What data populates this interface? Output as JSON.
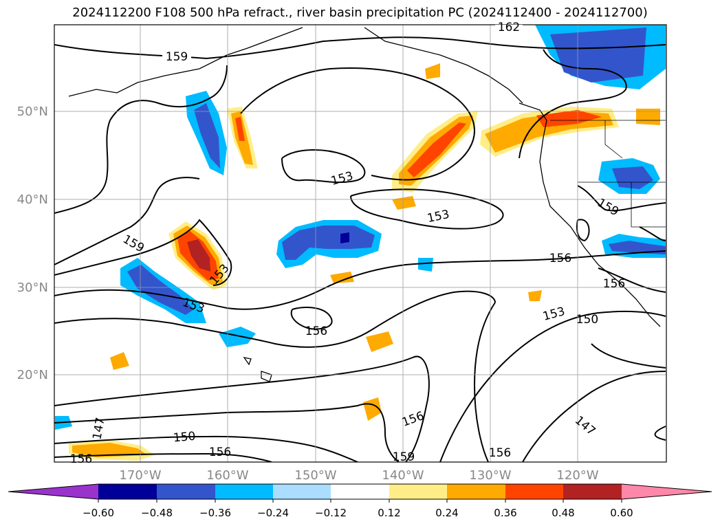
{
  "title": "2024112200 F108 500 hPa refract., river basin precipitation PC (2024112400 - 2024112700)",
  "map": {
    "lat_labels": [
      "50°N",
      "40°N",
      "30°N",
      "20°N"
    ],
    "lon_labels": [
      "170°W",
      "160°W",
      "150°W",
      "140°W",
      "130°W",
      "120°W"
    ],
    "contour_labels": [
      "162",
      "159",
      "159",
      "153",
      "153",
      "159",
      "153",
      "156",
      "153",
      "156",
      "153",
      "150",
      "156",
      "147",
      "150",
      "156",
      "156",
      "156",
      "159",
      "156",
      "147"
    ]
  },
  "colorbar": {
    "tick_labels": [
      "−0.60",
      "−0.48",
      "−0.36",
      "−0.24",
      "−0.12",
      "0.12",
      "0.24",
      "0.36",
      "0.48",
      "0.60"
    ],
    "colors": [
      "#9933cc",
      "#000099",
      "#3355cc",
      "#00bbff",
      "#aaddff",
      "#ffffff",
      "#ffee88",
      "#ffaa00",
      "#ff4400",
      "#b22222",
      "#ff88aa"
    ]
  }
}
